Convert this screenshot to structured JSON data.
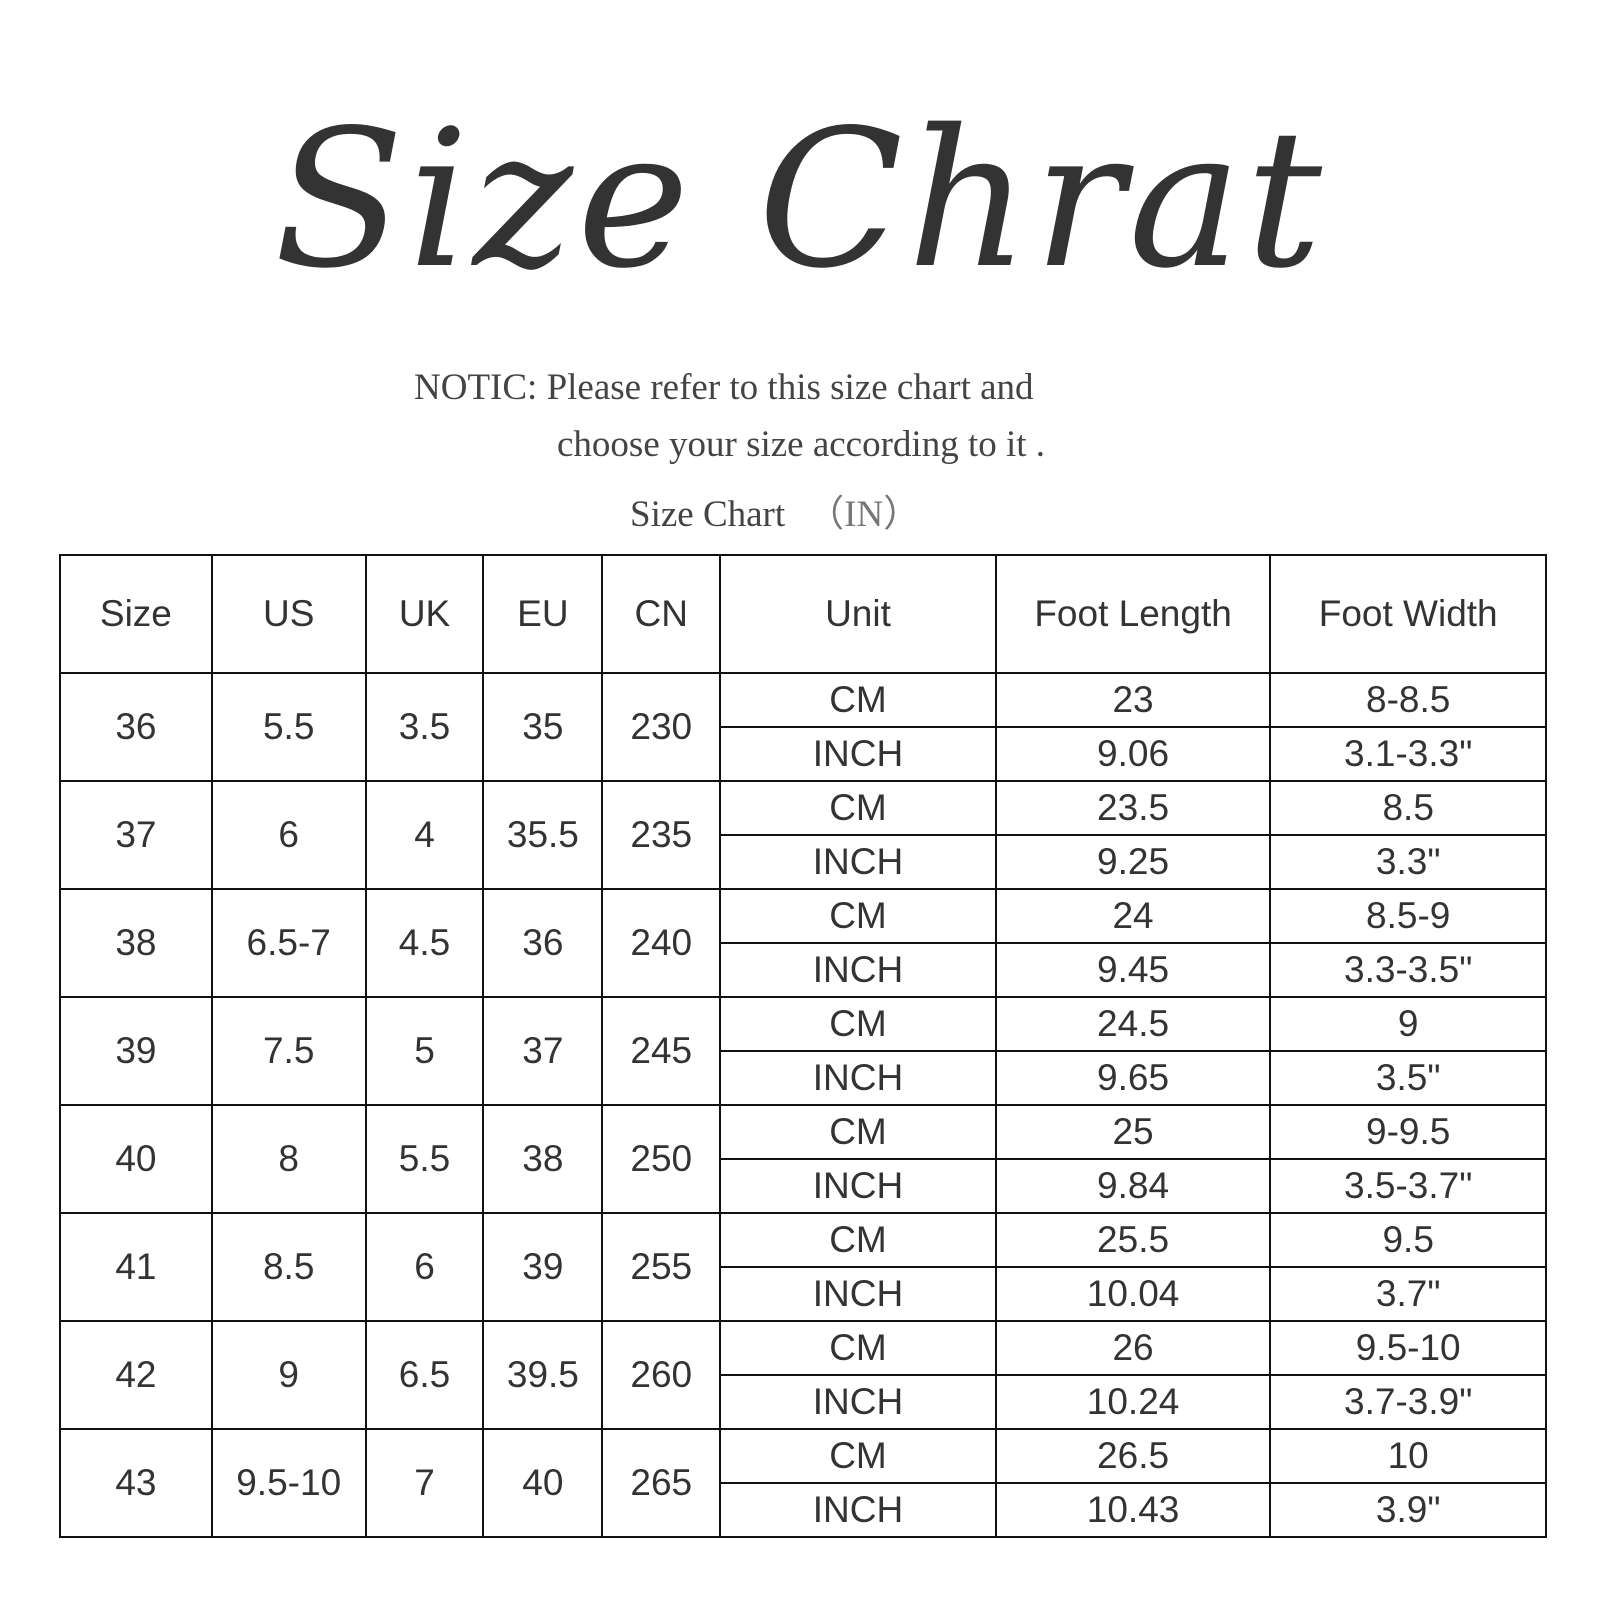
{
  "title": "Size Chrat",
  "notice": {
    "line1": "NOTIC: Please refer to this size chart and",
    "line2": "choose your size according to it .",
    "subtitle": "Size Chart",
    "subtitle_unit": "（IN）"
  },
  "table": {
    "headers": [
      "Size",
      "US",
      "UK",
      "EU",
      "CN",
      "Unit",
      "Foot Length",
      "Foot Width"
    ],
    "rows": [
      {
        "size": "36",
        "us": "5.5",
        "uk": "3.5",
        "eu": "35",
        "cn": "230",
        "cm": {
          "unit": "CM",
          "length": "23",
          "width": "8-8.5"
        },
        "inch": {
          "unit": "INCH",
          "length": "9.06",
          "width": "3.1-3.3\""
        }
      },
      {
        "size": "37",
        "us": "6",
        "uk": "4",
        "eu": "35.5",
        "cn": "235",
        "cm": {
          "unit": "CM",
          "length": "23.5",
          "width": "8.5"
        },
        "inch": {
          "unit": "INCH",
          "length": "9.25",
          "width": "3.3\""
        }
      },
      {
        "size": "38",
        "us": "6.5-7",
        "uk": "4.5",
        "eu": "36",
        "cn": "240",
        "cm": {
          "unit": "CM",
          "length": "24",
          "width": "8.5-9"
        },
        "inch": {
          "unit": "INCH",
          "length": "9.45",
          "width": "3.3-3.5\""
        }
      },
      {
        "size": "39",
        "us": "7.5",
        "uk": "5",
        "eu": "37",
        "cn": "245",
        "cm": {
          "unit": "CM",
          "length": "24.5",
          "width": "9"
        },
        "inch": {
          "unit": "INCH",
          "length": "9.65",
          "width": "3.5\""
        }
      },
      {
        "size": "40",
        "us": "8",
        "uk": "5.5",
        "eu": "38",
        "cn": "250",
        "cm": {
          "unit": "CM",
          "length": "25",
          "width": "9-9.5"
        },
        "inch": {
          "unit": "INCH",
          "length": "9.84",
          "width": "3.5-3.7\""
        }
      },
      {
        "size": "41",
        "us": "8.5",
        "uk": "6",
        "eu": "39",
        "cn": "255",
        "cm": {
          "unit": "CM",
          "length": "25.5",
          "width": "9.5"
        },
        "inch": {
          "unit": "INCH",
          "length": "10.04",
          "width": "3.7\""
        }
      },
      {
        "size": "42",
        "us": "9",
        "uk": "6.5",
        "eu": "39.5",
        "cn": "260",
        "cm": {
          "unit": "CM",
          "length": "26",
          "width": "9.5-10"
        },
        "inch": {
          "unit": "INCH",
          "length": "10.24",
          "width": "3.7-3.9\""
        }
      },
      {
        "size": "43",
        "us": "9.5-10",
        "uk": "7",
        "eu": "40",
        "cn": "265",
        "cm": {
          "unit": "CM",
          "length": "26.5",
          "width": "10"
        },
        "inch": {
          "unit": "INCH",
          "length": "10.43",
          "width": "3.9\""
        }
      }
    ]
  }
}
